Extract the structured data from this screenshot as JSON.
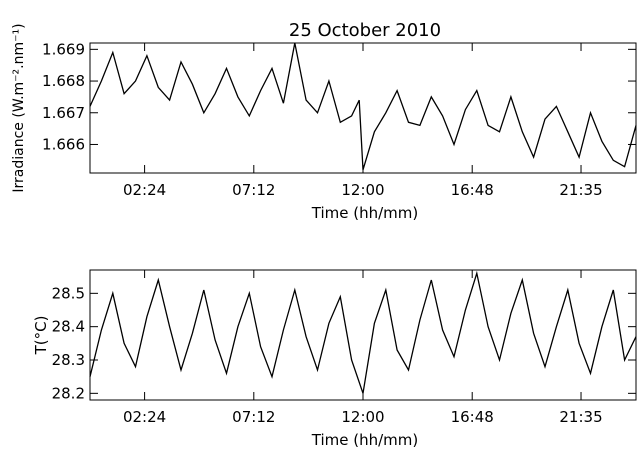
{
  "chart_data": [
    {
      "type": "line",
      "title": "25 October 2010",
      "xlabel": "Time (hh/mm)",
      "ylabel": "Irradiance (W.m⁻².nm⁻¹)",
      "xticks": [
        "02:24",
        "07:12",
        "12:00",
        "16:48",
        "21:35"
      ],
      "yticks": [
        "1.666",
        "1.667",
        "1.668",
        "1.669"
      ],
      "ylim": [
        1.6651,
        1.6692
      ],
      "series": [
        {
          "x": [
            "00:00",
            "00:30",
            "01:00",
            "01:30",
            "02:00",
            "02:30",
            "03:00",
            "03:30",
            "04:00",
            "04:30",
            "05:00",
            "05:30",
            "06:00",
            "06:30",
            "07:00",
            "07:30",
            "08:00",
            "08:30",
            "09:00",
            "09:30",
            "10:00",
            "10:30",
            "11:00",
            "11:30",
            "11:50",
            "12:00",
            "12:30",
            "13:00",
            "13:30",
            "14:00",
            "14:30",
            "15:00",
            "15:30",
            "16:00",
            "16:30",
            "17:00",
            "17:30",
            "18:00",
            "18:30",
            "19:00",
            "19:30",
            "20:00",
            "20:30",
            "21:00",
            "21:30",
            "22:00",
            "22:30",
            "23:00",
            "23:30",
            "24:00"
          ],
          "values": [
            1.6672,
            1.668,
            1.6689,
            1.6676,
            1.668,
            1.6688,
            1.6678,
            1.6674,
            1.6686,
            1.6679,
            1.667,
            1.6676,
            1.6684,
            1.6675,
            1.6669,
            1.6677,
            1.6684,
            1.6673,
            1.6692,
            1.6674,
            1.667,
            1.668,
            1.6667,
            1.6669,
            1.6674,
            1.6652,
            1.6664,
            1.667,
            1.6677,
            1.6667,
            1.6666,
            1.6675,
            1.6669,
            1.666,
            1.6671,
            1.6677,
            1.6666,
            1.6664,
            1.6675,
            1.6664,
            1.6656,
            1.6668,
            1.6672,
            1.6664,
            1.6656,
            1.667,
            1.6661,
            1.6655,
            1.6653,
            1.6666
          ]
        }
      ]
    },
    {
      "type": "line",
      "title": "",
      "xlabel": "Time (hh/mm)",
      "ylabel": "T(°C)",
      "xticks": [
        "02:24",
        "07:12",
        "12:00",
        "16:48",
        "21:35"
      ],
      "yticks": [
        "28.2",
        "28.3",
        "28.4",
        "28.5"
      ],
      "ylim": [
        28.18,
        28.57
      ],
      "series": [
        {
          "x": [
            "00:00",
            "00:30",
            "01:00",
            "01:30",
            "02:00",
            "02:30",
            "03:00",
            "03:30",
            "04:00",
            "04:30",
            "05:00",
            "05:30",
            "06:00",
            "06:30",
            "07:00",
            "07:30",
            "08:00",
            "08:30",
            "09:00",
            "09:30",
            "10:00",
            "10:30",
            "11:00",
            "11:30",
            "12:00",
            "12:30",
            "13:00",
            "13:30",
            "14:00",
            "14:30",
            "15:00",
            "15:30",
            "16:00",
            "16:30",
            "17:00",
            "17:30",
            "18:00",
            "18:30",
            "19:00",
            "19:30",
            "20:00",
            "20:30",
            "21:00",
            "21:30",
            "22:00",
            "22:30",
            "23:00",
            "23:30",
            "24:00"
          ],
          "values": [
            28.25,
            28.39,
            28.5,
            28.35,
            28.28,
            28.43,
            28.54,
            28.4,
            28.27,
            28.38,
            28.51,
            28.36,
            28.26,
            28.4,
            28.5,
            28.34,
            28.25,
            28.39,
            28.51,
            28.37,
            28.27,
            28.41,
            28.49,
            28.3,
            28.2,
            28.41,
            28.51,
            28.33,
            28.27,
            28.42,
            28.54,
            28.39,
            28.31,
            28.45,
            28.56,
            28.4,
            28.3,
            28.44,
            28.54,
            28.38,
            28.28,
            28.4,
            28.51,
            28.35,
            28.26,
            28.4,
            28.51,
            28.3,
            28.37
          ]
        }
      ]
    }
  ]
}
